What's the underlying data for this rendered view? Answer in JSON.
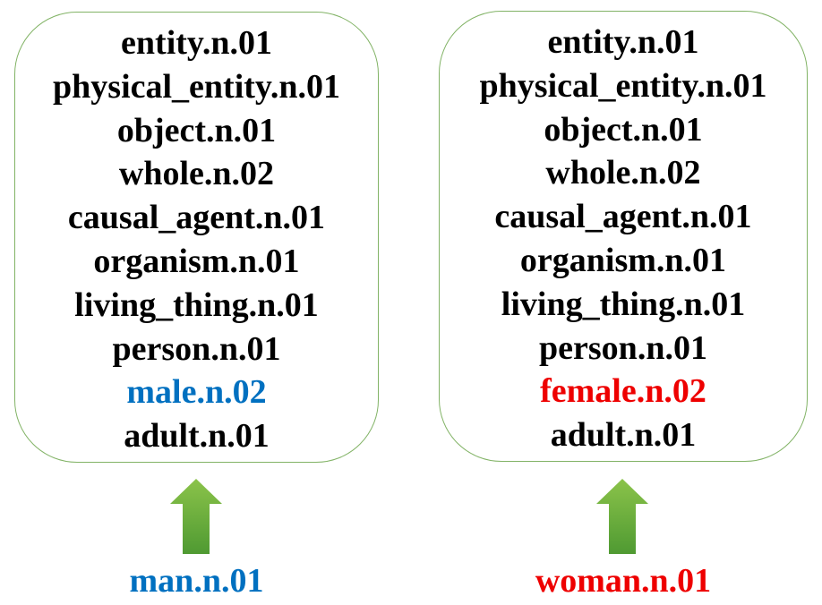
{
  "colors": {
    "male": "#0070c0",
    "female": "#ee0000",
    "text": "#000000",
    "box_border": "#82b366",
    "arrow_top": "#8bc34a",
    "arrow_bottom": "#4f9a32"
  },
  "left": {
    "hierarchy": [
      "entity.n.01",
      "physical_entity.n.01",
      "object.n.01",
      "whole.n.02",
      "causal_agent.n.01",
      "organism.n.01",
      "living_thing.n.01",
      "person.n.01",
      "male.n.02",
      "adult.n.01"
    ],
    "word": "man.n.01",
    "arrow_icon": "up-arrow-icon"
  },
  "right": {
    "hierarchy": [
      "entity.n.01",
      "physical_entity.n.01",
      "object.n.01",
      "whole.n.02",
      "causal_agent.n.01",
      "organism.n.01",
      "living_thing.n.01",
      "person.n.01",
      "female.n.02",
      "adult.n.01"
    ],
    "word": "woman.n.01",
    "arrow_icon": "up-arrow-icon"
  }
}
